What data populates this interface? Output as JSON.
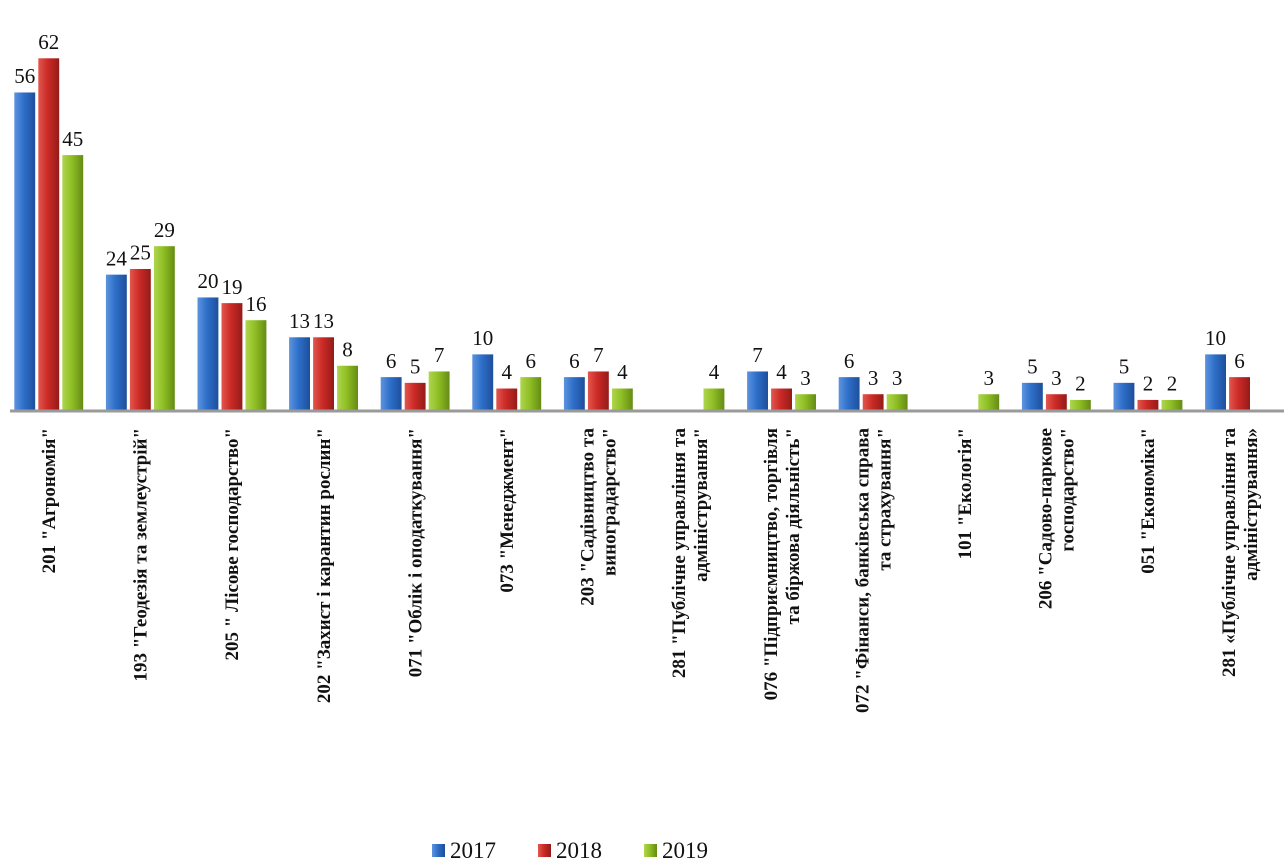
{
  "chart_data": {
    "type": "bar",
    "categories": [
      [
        "201 \"Агрономія\""
      ],
      [
        "193 \"Геодезія та землеустрій\""
      ],
      [
        "205 \" Лісове господарство\""
      ],
      [
        "202 \"Захист і карантин рослин\""
      ],
      [
        "071 \"Облік і оподаткування\""
      ],
      [
        "073 \"Менеджмент\""
      ],
      [
        "203 \"Садівництво та",
        "виноградарство\""
      ],
      [
        "281 \"Публічне управління та",
        "адміністрування\""
      ],
      [
        "076 \"Підприємництво, торгівля",
        "та біржова діяльність\""
      ],
      [
        "072 \"Фінанси, банківська справа",
        "та страхування\""
      ],
      [
        "101 \"Екологія\""
      ],
      [
        "206 \"Садово-паркове",
        "господарство\""
      ],
      [
        "051 \"Економіка\""
      ],
      [
        "281 «Публічне управління та",
        "адміністрування»"
      ]
    ],
    "series": [
      {
        "name": "2017",
        "color": "#2e6fc9",
        "values": [
          56,
          24,
          20,
          13,
          6,
          10,
          6,
          null,
          7,
          6,
          null,
          5,
          5,
          10
        ]
      },
      {
        "name": "2018",
        "color": "#cc2a26",
        "values": [
          62,
          25,
          19,
          13,
          5,
          4,
          7,
          null,
          4,
          3,
          null,
          3,
          2,
          6
        ]
      },
      {
        "name": "2019",
        "color": "#8fbf24",
        "values": [
          45,
          29,
          16,
          8,
          7,
          6,
          4,
          4,
          3,
          3,
          3,
          2,
          2,
          null
        ]
      }
    ],
    "ylim": [
      0,
      62
    ],
    "grid": false,
    "legend": "bottom-center"
  }
}
